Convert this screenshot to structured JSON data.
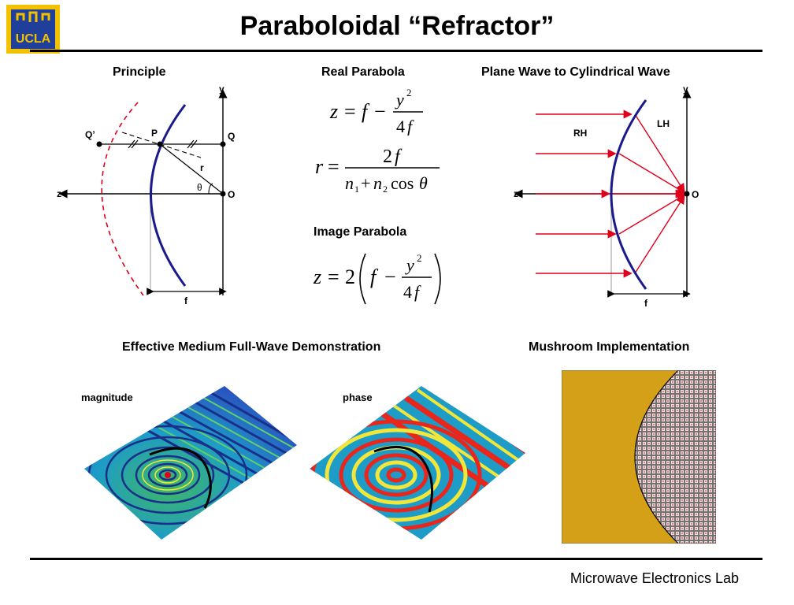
{
  "logo": {
    "text": "UCLA",
    "icon": "ucla-logo"
  },
  "title": "Paraboloidal “Refractor”",
  "sections": {
    "principle": "Principle",
    "real_parabola": "Real Parabola",
    "plane_to_cyl": "Plane Wave to Cylindrical Wave",
    "image_parabola": "Image Parabola",
    "effective_medium": "Effective Medium Full-Wave Demonstration",
    "mushroom": "Mushroom Implementation"
  },
  "principle_diagram": {
    "q_prime": "Q’",
    "p": "P",
    "q": "Q",
    "r": "r",
    "theta": "θ",
    "o": "O",
    "z": "z",
    "y": "y",
    "f": "f"
  },
  "wave_diagram": {
    "rh": "RH",
    "lh": "LH",
    "o": "O",
    "z": "z",
    "y": "y",
    "f": "f"
  },
  "sim_labels": {
    "magnitude": "magnitude",
    "phase": "phase"
  },
  "footer": "Microwave Electronics Lab",
  "colors": {
    "curve": "#1a1a8c",
    "rays": "#e0001a",
    "copper": "#d4a017",
    "logo_blue": "#1f3f9b",
    "logo_gold": "#f2c200"
  }
}
